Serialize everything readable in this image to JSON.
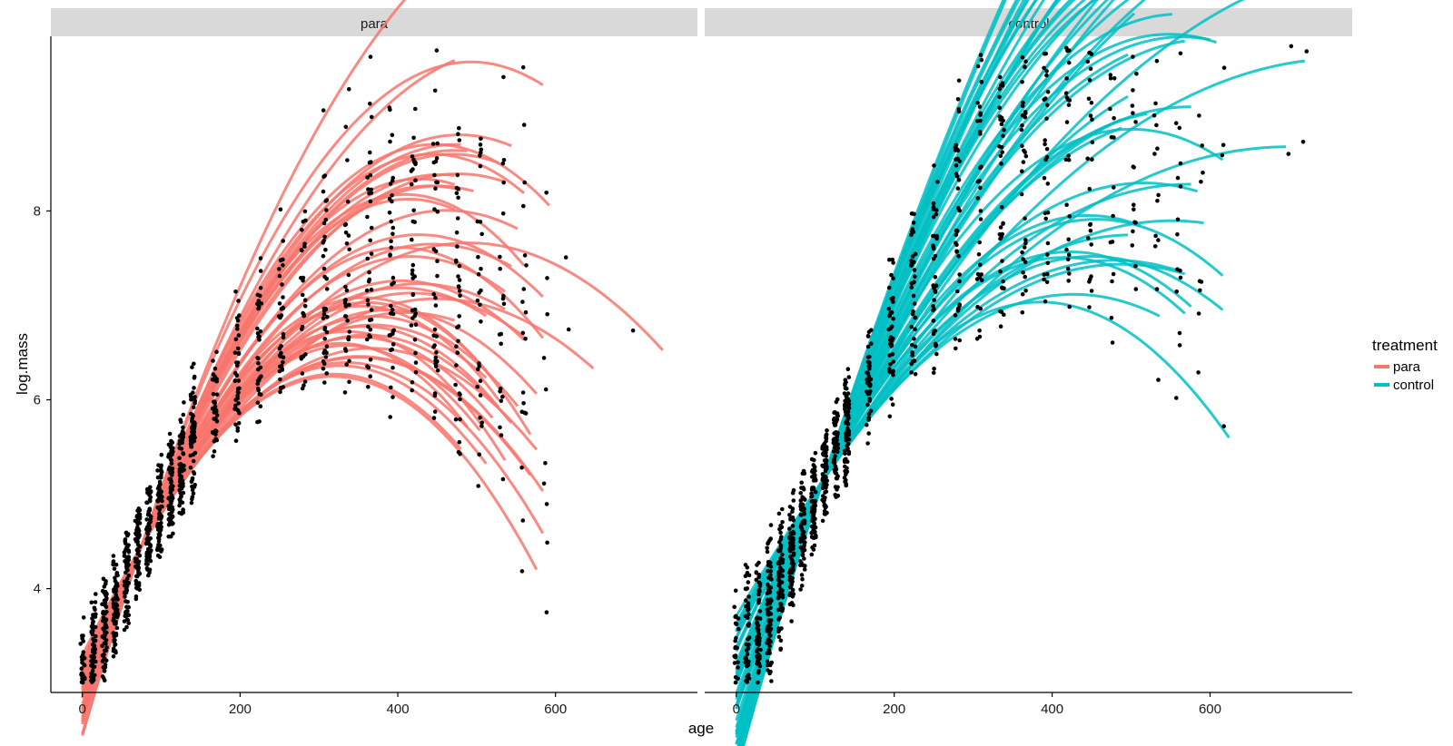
{
  "chart_data": {
    "type": "scatter",
    "xlabel": "age",
    "ylabel": "log.mass",
    "xlim": [
      -40,
      780
    ],
    "ylim": [
      2.9,
      9.85
    ],
    "x_ticks": [
      0,
      200,
      400,
      600
    ],
    "y_ticks": [
      4,
      6,
      8
    ],
    "x_tick_labels": [
      "0",
      "200",
      "400",
      "600"
    ],
    "y_tick_labels": [
      "4",
      "6",
      "8"
    ],
    "grid": false,
    "legend": {
      "title": "treatment",
      "position": "right",
      "entries": [
        {
          "name": "para",
          "color": "#F8766D"
        },
        {
          "name": "control",
          "color": "#00BFC4"
        }
      ]
    },
    "point_color": "#000000",
    "panels": [
      {
        "strip_label": "para",
        "color": "#F8766D",
        "pivot": {
          "x": 75,
          "y": 4.45
        },
        "slope_range": [
          0.014,
          0.025
        ],
        "curve_range": [
          2.2e-05,
          3.4e-05
        ],
        "age_end_range": [
          470,
          600
        ],
        "long_curve_ends": [
          650,
          740
        ],
        "n_curves": 45,
        "point_age_clusters": [
          0,
          14,
          28,
          42,
          56,
          70,
          84,
          98,
          112,
          126,
          140,
          168,
          196,
          224,
          252,
          280,
          308,
          336,
          364,
          392,
          420,
          448,
          476,
          504,
          532,
          560,
          588,
          616,
          672,
          700,
          740
        ],
        "seed": 11
      },
      {
        "strip_label": "control",
        "color": "#00BFC4",
        "pivot": {
          "x": 110,
          "y": 5.15
        },
        "slope_range": [
          0.012,
          0.026
        ],
        "curve_range": [
          1.2e-05,
          2.6e-05
        ],
        "age_end_range": [
          480,
          630
        ],
        "long_curve_ends": [
          700,
          720,
          720
        ],
        "n_curves": 48,
        "point_age_clusters": [
          0,
          14,
          28,
          42,
          56,
          70,
          84,
          98,
          112,
          126,
          140,
          168,
          196,
          224,
          252,
          280,
          308,
          336,
          364,
          392,
          420,
          448,
          476,
          504,
          532,
          560,
          588,
          616,
          700,
          720
        ],
        "seed": 29
      }
    ]
  }
}
